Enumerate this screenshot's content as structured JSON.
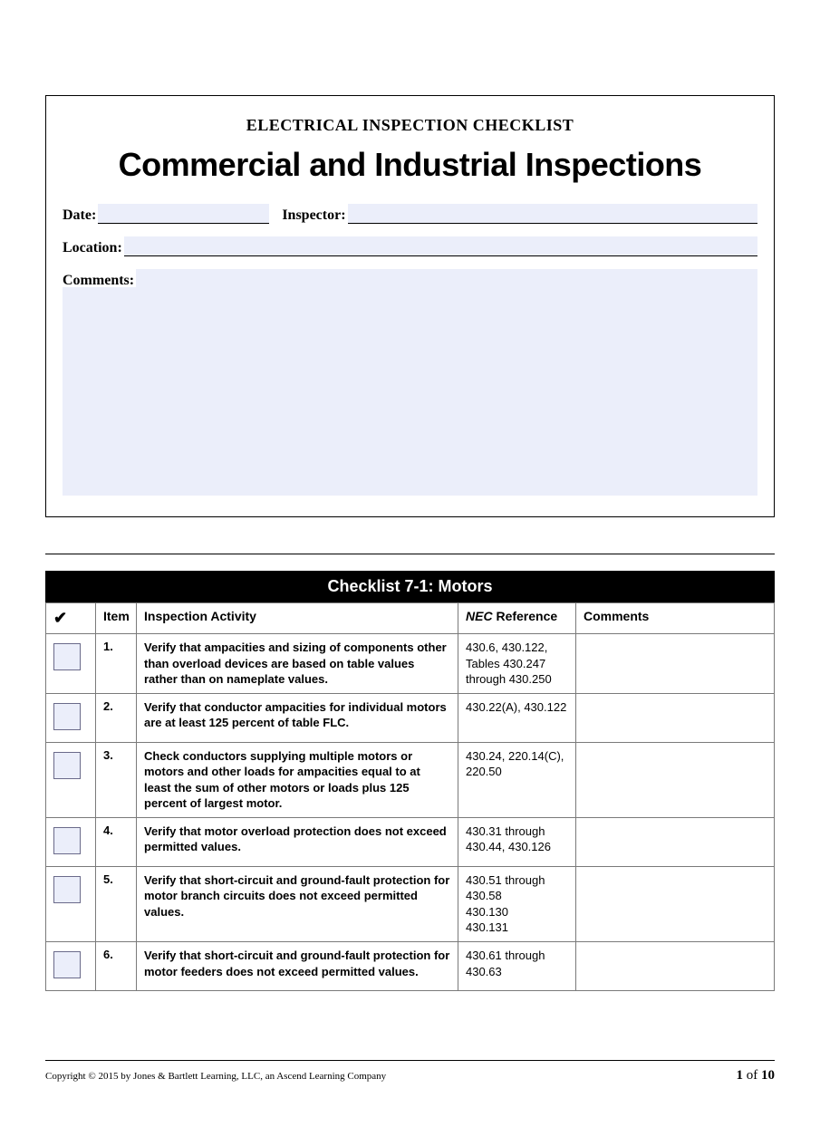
{
  "header": {
    "small_title": "ELECTRICAL INSPECTION CHECKLIST",
    "large_title": "Commercial and Industrial Inspections"
  },
  "form": {
    "date_label": "Date:",
    "date_value": "",
    "inspector_label": "Inspector:",
    "inspector_value": "",
    "location_label": "Location:",
    "location_value": "",
    "comments_label": "Comments:",
    "comments_value": "",
    "input_bg": "#ebeefa"
  },
  "checklist": {
    "title": "Checklist 7-1: Motors",
    "title_bg": "#000000",
    "title_fg": "#ffffff",
    "check_glyph": "✔",
    "columns": {
      "check": "",
      "item": "Item",
      "activity": "Inspection Activity",
      "nec_prefix": "NEC",
      "nec_suffix": " Reference",
      "comments": "Comments"
    },
    "rows": [
      {
        "item": "1.",
        "activity": "Verify that ampacities and sizing of components other than overload devices are based on table values rather than on nameplate values.",
        "nec": "430.6, 430.122, Tables 430.247 through 430.250",
        "comments": ""
      },
      {
        "item": "2.",
        "activity": "Verify that conductor ampacities for individual motors are at least 125 percent of table FLC.",
        "nec": "430.22(A), 430.122",
        "comments": ""
      },
      {
        "item": "3.",
        "activity": "Check conductors supplying multiple motors or motors and other loads for ampacities equal to at least the sum of other motors or loads plus 125 percent of largest motor.",
        "nec": "430.24, 220.14(C), 220.50",
        "comments": ""
      },
      {
        "item": "4.",
        "activity": "Verify that motor overload protection does not exceed permitted values.",
        "nec": "430.31 through 430.44, 430.126",
        "comments": ""
      },
      {
        "item": "5.",
        "activity": "Verify that short-circuit and ground-fault protection for motor branch circuits does not exceed permitted values.",
        "nec": "430.51 through 430.58\n430.130\n430.131",
        "comments": ""
      },
      {
        "item": "6.",
        "activity": "Verify that short-circuit and ground-fault protection for motor feeders does not exceed permitted values.",
        "nec": "430.61 through 430.63",
        "comments": ""
      }
    ],
    "checkbox_border": "#6a6a8a",
    "checkbox_bg": "#ebeefa",
    "border_color": "#7a7a7a"
  },
  "footer": {
    "copyright": "Copyright © 2015 by Jones & Bartlett Learning, LLC, an Ascend Learning Company",
    "page_current": "1",
    "page_sep": " of ",
    "page_total": "10"
  }
}
